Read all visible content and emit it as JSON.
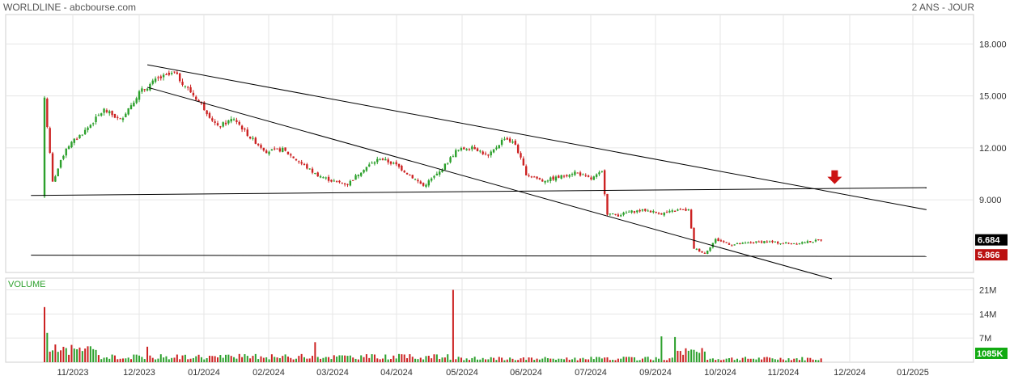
{
  "header": {
    "title": "WORLDLINE - abcbourse.com",
    "period": "2 ANS - JOUR"
  },
  "colors": {
    "up": "#2ca02c",
    "down": "#cc2222",
    "grid": "#e6e6e6",
    "trendline": "#000000",
    "marker_last": "#000000",
    "marker_low": "#bb1111",
    "marker_volume": "#11aa11",
    "arrow": "#cc1111"
  },
  "chart_data": [
    {
      "type": "candlestick",
      "title": "",
      "y_tick_labels": [
        "18.000",
        "15.000",
        "12.000",
        "9.000"
      ],
      "y_ticks": [
        18,
        15,
        12,
        9
      ],
      "ylim": [
        4.8,
        19.7
      ],
      "x_tick_labels": [
        "11/2023",
        "12/2023",
        "01/2024",
        "02/2024",
        "03/2024",
        "04/2024",
        "05/2024",
        "06/2024",
        "07/2024",
        "09/2024",
        "10/2024",
        "11/2024",
        "12/2024",
        "01/2025"
      ],
      "grid": true,
      "last_price_label": "6.684",
      "low_price_label": "5.866",
      "price_path": [
        [
          0,
          14.9
        ],
        [
          3,
          10.0
        ],
        [
          8,
          12.0
        ],
        [
          15,
          13.0
        ],
        [
          22,
          14.2
        ],
        [
          28,
          13.6
        ],
        [
          35,
          15.2
        ],
        [
          42,
          16.0
        ],
        [
          48,
          16.3
        ],
        [
          52,
          15.6
        ],
        [
          58,
          14.5
        ],
        [
          64,
          13.2
        ],
        [
          70,
          13.7
        ],
        [
          76,
          12.6
        ],
        [
          82,
          11.8
        ],
        [
          88,
          11.9
        ],
        [
          94,
          11.2
        ],
        [
          100,
          10.5
        ],
        [
          106,
          10.1
        ],
        [
          112,
          9.9
        ],
        [
          118,
          10.8
        ],
        [
          124,
          11.4
        ],
        [
          130,
          11.0
        ],
        [
          136,
          10.3
        ],
        [
          140,
          9.8
        ],
        [
          146,
          10.6
        ],
        [
          152,
          11.8
        ],
        [
          158,
          12.1
        ],
        [
          164,
          11.5
        ],
        [
          170,
          12.6
        ],
        [
          174,
          12.2
        ],
        [
          178,
          10.5
        ],
        [
          184,
          10.1
        ],
        [
          190,
          10.3
        ],
        [
          196,
          10.6
        ],
        [
          202,
          10.2
        ],
        [
          206,
          10.6
        ],
        [
          208,
          8.2
        ],
        [
          212,
          8.1
        ],
        [
          216,
          8.3
        ],
        [
          222,
          8.4
        ],
        [
          228,
          8.2
        ],
        [
          234,
          8.4
        ],
        [
          238,
          8.4
        ],
        [
          240,
          6.2
        ],
        [
          244,
          5.9
        ],
        [
          248,
          6.7
        ],
        [
          254,
          6.4
        ],
        [
          260,
          6.5
        ],
        [
          266,
          6.6
        ],
        [
          272,
          6.5
        ],
        [
          278,
          6.5
        ],
        [
          284,
          6.6
        ],
        [
          287,
          6.68
        ]
      ],
      "total_days": 340,
      "trendlines": [
        {
          "p1": [
            38,
            16.8
          ],
          "p2": [
            314,
            8.8
          ]
        },
        {
          "p1": [
            38,
            15.5
          ],
          "p2": [
            279,
            4.8
          ]
        },
        {
          "p1": [
            -5,
            9.25
          ],
          "p2": [
            314,
            9.7
          ]
        },
        {
          "p1": [
            -5,
            5.8
          ],
          "p2": [
            314,
            6.1
          ]
        }
      ],
      "arrow_at": [
        292,
        10.7
      ]
    },
    {
      "type": "bar",
      "title": "VOLUME",
      "y_tick_labels": [
        "21M",
        "14M",
        "7M"
      ],
      "y_ticks": [
        21,
        14,
        7
      ],
      "ylim": [
        0,
        23
      ],
      "last_volume_label": "1085K",
      "spikes": [
        [
          0,
          16
        ],
        [
          1,
          8.5
        ],
        [
          151,
          21
        ],
        [
          228,
          7.5
        ],
        [
          233,
          7.3
        ],
        [
          100,
          5.8
        ],
        [
          38,
          4.5
        ]
      ]
    }
  ]
}
